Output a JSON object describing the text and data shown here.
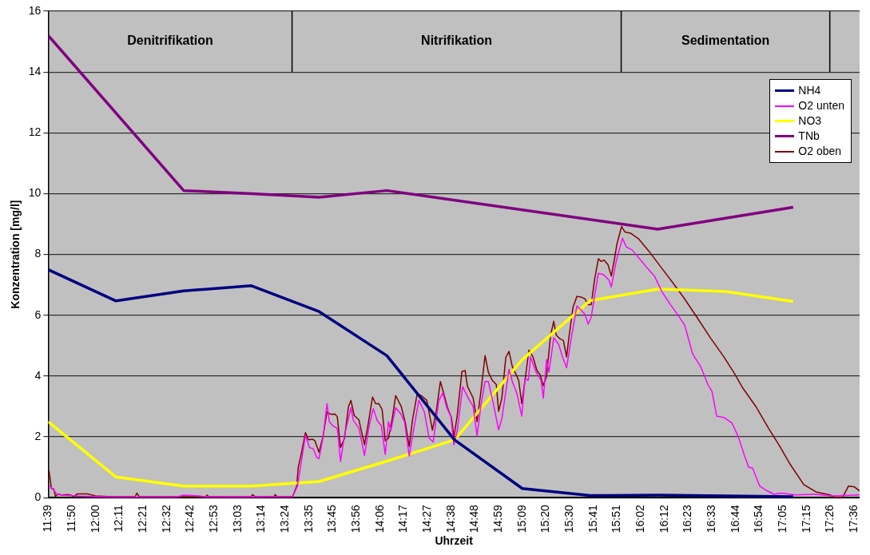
{
  "chart_data": {
    "type": "line",
    "xlabel": "Uhrzeit",
    "ylabel": "Konzentration [mg/l]",
    "grid": "y",
    "legend": "top right",
    "marker": "none",
    "line_style": "solid",
    "xlim": [
      11.65,
      17.64
    ],
    "ylim": [
      0,
      16
    ],
    "yticks": [
      0,
      2,
      4,
      6,
      8,
      10,
      12,
      14,
      16
    ],
    "xticks": [
      {
        "value": 11.65,
        "label": "11:39"
      },
      {
        "value": 11.825,
        "label": "11:50"
      },
      {
        "value": 12.0,
        "label": "12:00"
      },
      {
        "value": 12.175,
        "label": "12:11"
      },
      {
        "value": 12.35,
        "label": "12:21"
      },
      {
        "value": 12.525,
        "label": "12:32"
      },
      {
        "value": 12.7,
        "label": "12:42"
      },
      {
        "value": 12.875,
        "label": "12:53"
      },
      {
        "value": 13.05,
        "label": "13:03"
      },
      {
        "value": 13.225,
        "label": "13:14"
      },
      {
        "value": 13.4,
        "label": "13:24"
      },
      {
        "value": 13.575,
        "label": "13:35"
      },
      {
        "value": 13.75,
        "label": "13:45"
      },
      {
        "value": 13.925,
        "label": "13:56"
      },
      {
        "value": 14.1,
        "label": "14:06"
      },
      {
        "value": 14.275,
        "label": "14:17"
      },
      {
        "value": 14.45,
        "label": "14:27"
      },
      {
        "value": 14.625,
        "label": "14:38"
      },
      {
        "value": 14.8,
        "label": "14:48"
      },
      {
        "value": 14.975,
        "label": "14:59"
      },
      {
        "value": 15.15,
        "label": "15:09"
      },
      {
        "value": 15.325,
        "label": "15:20"
      },
      {
        "value": 15.5,
        "label": "15:30"
      },
      {
        "value": 15.675,
        "label": "15:41"
      },
      {
        "value": 15.85,
        "label": "15:51"
      },
      {
        "value": 16.025,
        "label": "16:02"
      },
      {
        "value": 16.2,
        "label": "16:12"
      },
      {
        "value": 16.375,
        "label": "16:23"
      },
      {
        "value": 16.55,
        "label": "16:33"
      },
      {
        "value": 16.725,
        "label": "16:44"
      },
      {
        "value": 16.9,
        "label": "16:54"
      },
      {
        "value": 17.075,
        "label": "17:05"
      },
      {
        "value": 17.25,
        "label": "17:15"
      },
      {
        "value": 17.425,
        "label": "17:26"
      },
      {
        "value": 17.6,
        "label": "17:36"
      }
    ],
    "ref_lines": [
      {
        "axis": "x",
        "value": 13.45
      },
      {
        "axis": "x",
        "value": 15.88
      },
      {
        "axis": "x",
        "value": 17.42
      }
    ],
    "annotations": [
      "Denitrifikation",
      "Nitrifikation",
      "Sedimentation"
    ],
    "series": [
      {
        "name": "NH4",
        "color": "#000080",
        "x": [
          11.65,
          12.15,
          12.65,
          13.15,
          13.65,
          14.15,
          14.65,
          15.15,
          15.65,
          16.15,
          16.65,
          17.15
        ],
        "values": [
          7.5,
          6.47,
          6.8,
          6.97,
          6.12,
          4.67,
          1.9,
          0.3,
          0.07,
          0.08,
          0.06,
          0.03
        ]
      },
      {
        "name": "O2 unten",
        "color": "#ff00ff",
        "x": [
          11.656,
          11.691,
          11.715,
          11.762,
          11.88,
          12.116,
          12.588,
          12.646,
          12.764,
          12.823,
          13.454,
          13.49,
          13.519,
          13.549,
          13.578,
          13.608,
          13.631,
          13.649,
          13.678,
          13.708,
          13.725,
          13.755,
          13.784,
          13.808,
          13.837,
          13.885,
          13.902,
          13.944,
          13.985,
          14.02,
          14.05,
          14.079,
          14.109,
          14.138,
          14.162,
          14.179,
          14.215,
          14.25,
          14.28,
          14.315,
          14.344,
          14.386,
          14.427,
          14.462,
          14.492,
          14.533,
          14.563,
          14.592,
          14.622,
          14.645,
          14.669,
          14.71,
          14.751,
          14.787,
          14.816,
          14.846,
          14.875,
          14.899,
          14.934,
          14.975,
          14.999,
          15.052,
          15.076,
          15.111,
          15.146,
          15.17,
          15.194,
          15.211,
          15.252,
          15.288,
          15.305,
          15.329,
          15.347,
          15.382,
          15.418,
          15.447,
          15.477,
          15.512,
          15.553,
          15.583,
          15.612,
          15.636,
          15.659,
          15.683,
          15.712,
          15.748,
          15.789,
          15.807,
          15.842,
          15.889,
          15.919,
          15.96,
          16.019,
          16.078,
          16.125,
          16.184,
          16.243,
          16.302,
          16.349,
          16.408,
          16.467,
          16.52,
          16.55,
          16.585,
          16.638,
          16.697,
          16.744,
          16.791,
          16.821,
          16.85,
          16.903,
          16.951,
          17.009,
          17.057,
          17.169,
          17.304,
          17.44,
          17.64
        ],
        "values": [
          0.4,
          0.25,
          0.1,
          0.08,
          0.05,
          0.02,
          0.02,
          0.08,
          0.06,
          0.02,
          0.03,
          0.38,
          1.19,
          2.05,
          1.65,
          1.6,
          1.33,
          1.28,
          1.96,
          3.09,
          2.5,
          2.35,
          2.28,
          1.19,
          2.05,
          2.96,
          2.55,
          2.28,
          1.39,
          2.37,
          2.93,
          2.53,
          2.37,
          1.42,
          2.5,
          2.19,
          2.96,
          2.77,
          2.5,
          1.37,
          2.14,
          3.2,
          2.82,
          1.96,
          1.83,
          3.18,
          3.45,
          2.96,
          2.68,
          1.74,
          2.19,
          3.65,
          3.27,
          3.0,
          2.03,
          3.09,
          3.82,
          3.82,
          3.14,
          2.23,
          2.6,
          4.22,
          3.82,
          3.41,
          2.68,
          3.91,
          3.86,
          4.63,
          4.13,
          3.86,
          3.27,
          4.54,
          4.13,
          5.26,
          5.04,
          4.63,
          4.27,
          5.26,
          6.3,
          6.17,
          6.03,
          5.71,
          5.94,
          6.62,
          7.38,
          7.34,
          7.16,
          6.93,
          7.75,
          8.53,
          8.24,
          8.15,
          7.84,
          7.52,
          7.29,
          6.75,
          6.35,
          5.99,
          5.67,
          4.72,
          4.31,
          3.72,
          3.5,
          2.68,
          2.64,
          2.46,
          2.01,
          1.37,
          1.0,
          0.97,
          0.38,
          0.24,
          0.11,
          0.15,
          0.09,
          0.11,
          0.06,
          0.09
        ]
      },
      {
        "name": "NO3",
        "color": "#ffff00",
        "x": [
          11.65,
          12.15,
          12.65,
          13.15,
          13.65,
          14.15,
          14.65,
          15.15,
          15.65,
          16.15,
          16.65,
          17.15
        ],
        "values": [
          2.5,
          0.68,
          0.38,
          0.38,
          0.53,
          1.2,
          1.9,
          4.54,
          6.48,
          6.86,
          6.78,
          6.45
        ]
      },
      {
        "name": "TNb",
        "color": "#800080",
        "x": [
          11.65,
          12.65,
          13.15,
          13.65,
          14.15,
          16.15,
          17.15
        ],
        "values": [
          15.2,
          10.1,
          10.0,
          9.88,
          10.1,
          8.83,
          9.55
        ]
      },
      {
        "name": "O2 oben",
        "color": "#800000",
        "x": [
          11.656,
          11.674,
          11.691,
          11.703,
          11.727,
          11.75,
          11.792,
          11.821,
          11.839,
          11.862,
          11.939,
          11.998,
          12.116,
          12.293,
          12.304,
          12.322,
          12.812,
          12.823,
          12.835,
          13.148,
          13.159,
          13.177,
          13.319,
          13.324,
          13.342,
          13.454,
          13.484,
          13.496,
          13.519,
          13.549,
          13.572,
          13.602,
          13.619,
          13.649,
          13.678,
          13.708,
          13.737,
          13.767,
          13.784,
          13.808,
          13.837,
          13.867,
          13.885,
          13.908,
          13.944,
          13.985,
          14.014,
          14.044,
          14.067,
          14.091,
          14.115,
          14.138,
          14.162,
          14.191,
          14.215,
          14.256,
          14.286,
          14.315,
          14.339,
          14.374,
          14.403,
          14.445,
          14.486,
          14.516,
          14.545,
          14.569,
          14.598,
          14.627,
          14.645,
          14.669,
          14.704,
          14.728,
          14.745,
          14.787,
          14.816,
          14.846,
          14.875,
          14.899,
          14.928,
          14.958,
          14.975,
          14.999,
          15.028,
          15.052,
          15.076,
          15.105,
          15.123,
          15.146,
          15.17,
          15.199,
          15.229,
          15.258,
          15.282,
          15.305,
          15.329,
          15.359,
          15.382,
          15.4,
          15.429,
          15.453,
          15.477,
          15.494,
          15.524,
          15.553,
          15.583,
          15.612,
          15.636,
          15.659,
          15.683,
          15.712,
          15.73,
          15.754,
          15.783,
          15.807,
          15.83,
          15.848,
          15.883,
          15.907,
          15.948,
          16.007,
          16.084,
          16.184,
          16.261,
          16.343,
          16.438,
          16.538,
          16.638,
          16.715,
          16.774,
          16.874,
          16.968,
          17.051,
          17.127,
          17.228,
          17.322,
          17.422,
          17.452,
          17.516,
          17.558,
          17.599,
          17.64
        ],
        "values": [
          0.88,
          0.3,
          0.28,
          0.05,
          0.12,
          0.08,
          0.1,
          0.08,
          0.03,
          0.12,
          0.12,
          0.06,
          0.03,
          0.03,
          0.15,
          0.03,
          0.03,
          0.08,
          0.03,
          0.03,
          0.1,
          0.03,
          0.03,
          0.1,
          0.03,
          0.03,
          0.38,
          1.0,
          1.46,
          2.14,
          1.9,
          1.92,
          1.87,
          1.49,
          2.0,
          2.82,
          2.74,
          2.75,
          2.66,
          1.65,
          1.95,
          3.0,
          3.2,
          2.71,
          2.55,
          1.74,
          2.47,
          3.31,
          3.09,
          3.09,
          2.9,
          1.87,
          1.95,
          2.63,
          3.36,
          3.0,
          2.47,
          1.68,
          2.55,
          3.42,
          3.36,
          3.2,
          2.22,
          2.87,
          3.82,
          3.44,
          2.96,
          2.63,
          2.0,
          2.68,
          4.15,
          4.18,
          3.66,
          3.28,
          2.5,
          3.55,
          4.67,
          4.13,
          3.86,
          3.72,
          2.84,
          3.27,
          4.61,
          4.81,
          4.31,
          4.04,
          3.86,
          3.09,
          3.86,
          4.85,
          4.63,
          4.18,
          4.04,
          3.68,
          3.99,
          5.35,
          5.8,
          5.35,
          5.22,
          5.17,
          4.63,
          5.26,
          6.26,
          6.62,
          6.6,
          6.54,
          6.35,
          6.35,
          7.16,
          7.86,
          7.77,
          7.81,
          7.66,
          7.29,
          7.84,
          8.33,
          8.92,
          8.74,
          8.7,
          8.52,
          8.11,
          7.52,
          7.07,
          6.57,
          5.94,
          5.26,
          4.63,
          4.09,
          3.63,
          3.0,
          2.28,
          1.69,
          1.1,
          0.43,
          0.18,
          0.09,
          0.02,
          0.02,
          0.38,
          0.36,
          0.22
        ]
      }
    ]
  }
}
